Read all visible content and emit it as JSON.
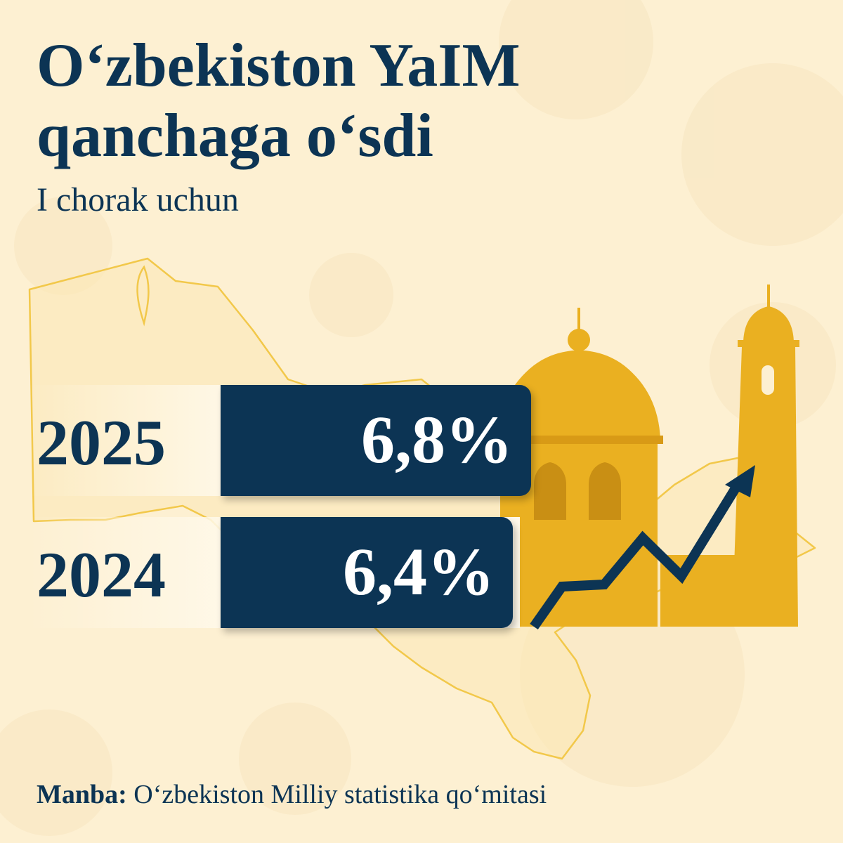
{
  "title_line1": "O‘zbekiston YaIM",
  "title_line2": "qanchaga o‘sdi",
  "subtitle": "I chorak uchun",
  "footer": {
    "label": "Manba:",
    "text": "O‘zbekiston Milliy statistika qo‘mitasi"
  },
  "colors": {
    "background": "#fdf0d2",
    "navy": "#0c3454",
    "gold": "#f0b325",
    "map_outline": "#f2c84a"
  },
  "icons": [
    "uzbekistan-map-outline",
    "mosque-dome-icon",
    "minaret-icon",
    "growth-arrow-icon"
  ],
  "chart_data": {
    "type": "bar",
    "orientation": "horizontal",
    "categories": [
      "2025",
      "2024"
    ],
    "values": [
      6.8,
      6.4
    ],
    "value_labels": [
      "6,8%",
      "6,4%"
    ],
    "unit": "%"
  }
}
